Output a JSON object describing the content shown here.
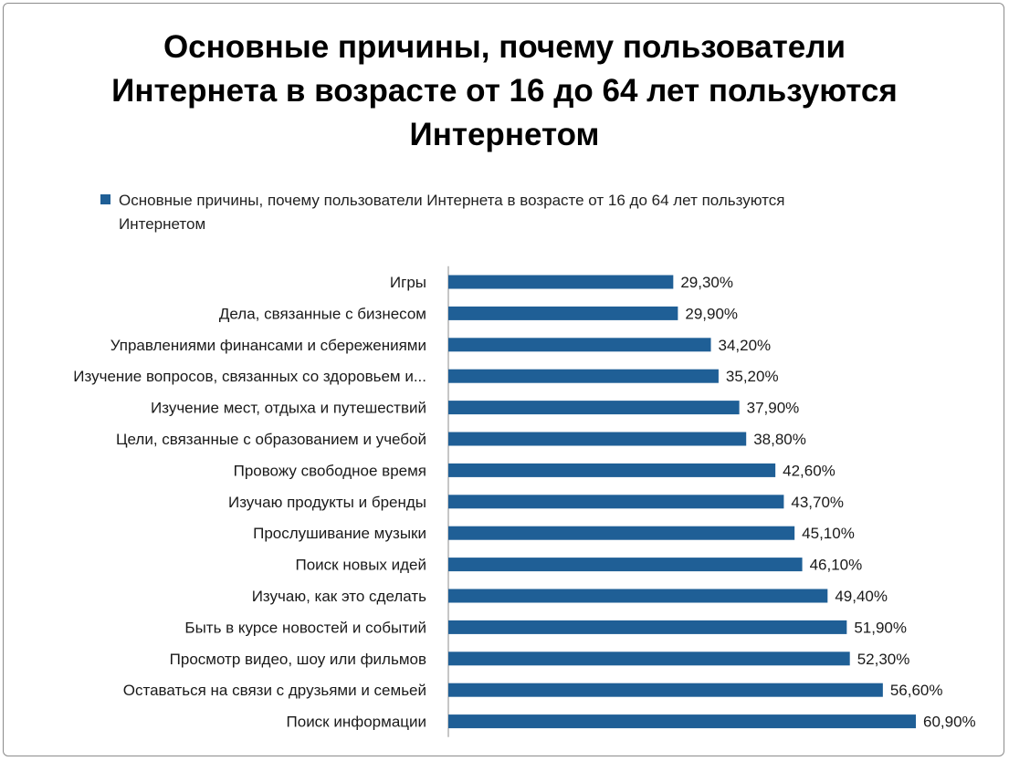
{
  "colors": {
    "bar": "#1f5f96",
    "axis": "#8c8c8c"
  },
  "chart_data": {
    "type": "bar",
    "orientation": "horizontal",
    "title": "Основные причины, почему пользователи Интернета в возрасте от 16 до 64 лет пользуются Интернетом",
    "title_lines": [
      "Основные причины, почему пользователи",
      "Интернета в возрасте от 16 до 64 лет пользуются",
      "Интернетом"
    ],
    "legend": {
      "position": "top",
      "lines": [
        "Основные причины, почему пользователи Интернета  в возрасте от 16 до 64 лет пользуются",
        "Интернетом"
      ]
    },
    "xlim": [
      0,
      62
    ],
    "grid": false,
    "series": [
      {
        "name": "Основные причины, почему пользователи Интернета  в возрасте от 16 до 64 лет пользуются Интернетом",
        "values": [
          29.3,
          29.9,
          34.2,
          35.2,
          37.9,
          38.8,
          42.6,
          43.7,
          45.1,
          46.1,
          49.4,
          51.9,
          52.3,
          56.6,
          60.9
        ]
      }
    ],
    "categories": [
      "Игры",
      "Дела, связанные с бизнесом",
      "Управлениями финансами и сбережениями",
      "Изучение вопросов, связанных со здоровьем и...",
      "Изучение мест, отдыха и путешествий",
      "Цели, связанные с образованием и учебой",
      "Провожу свободное время",
      "Изучаю продукты и бренды",
      "Прослушивание музыки",
      "Поиск новых идей",
      "Изучаю, как это сделать",
      "Быть в курсе новостей и событий",
      "Просмотр видео, шоу или фильмов",
      "Оставаться на связи с друзьями и семьей",
      "Поиск информации"
    ],
    "data_labels": [
      "29,30%",
      "29,90%",
      "34,20%",
      "35,20%",
      "37,90%",
      "38,80%",
      "42,60%",
      "43,70%",
      "45,10%",
      "46,10%",
      "49,40%",
      "51,90%",
      "52,30%",
      "56,60%",
      "60,90%"
    ]
  }
}
